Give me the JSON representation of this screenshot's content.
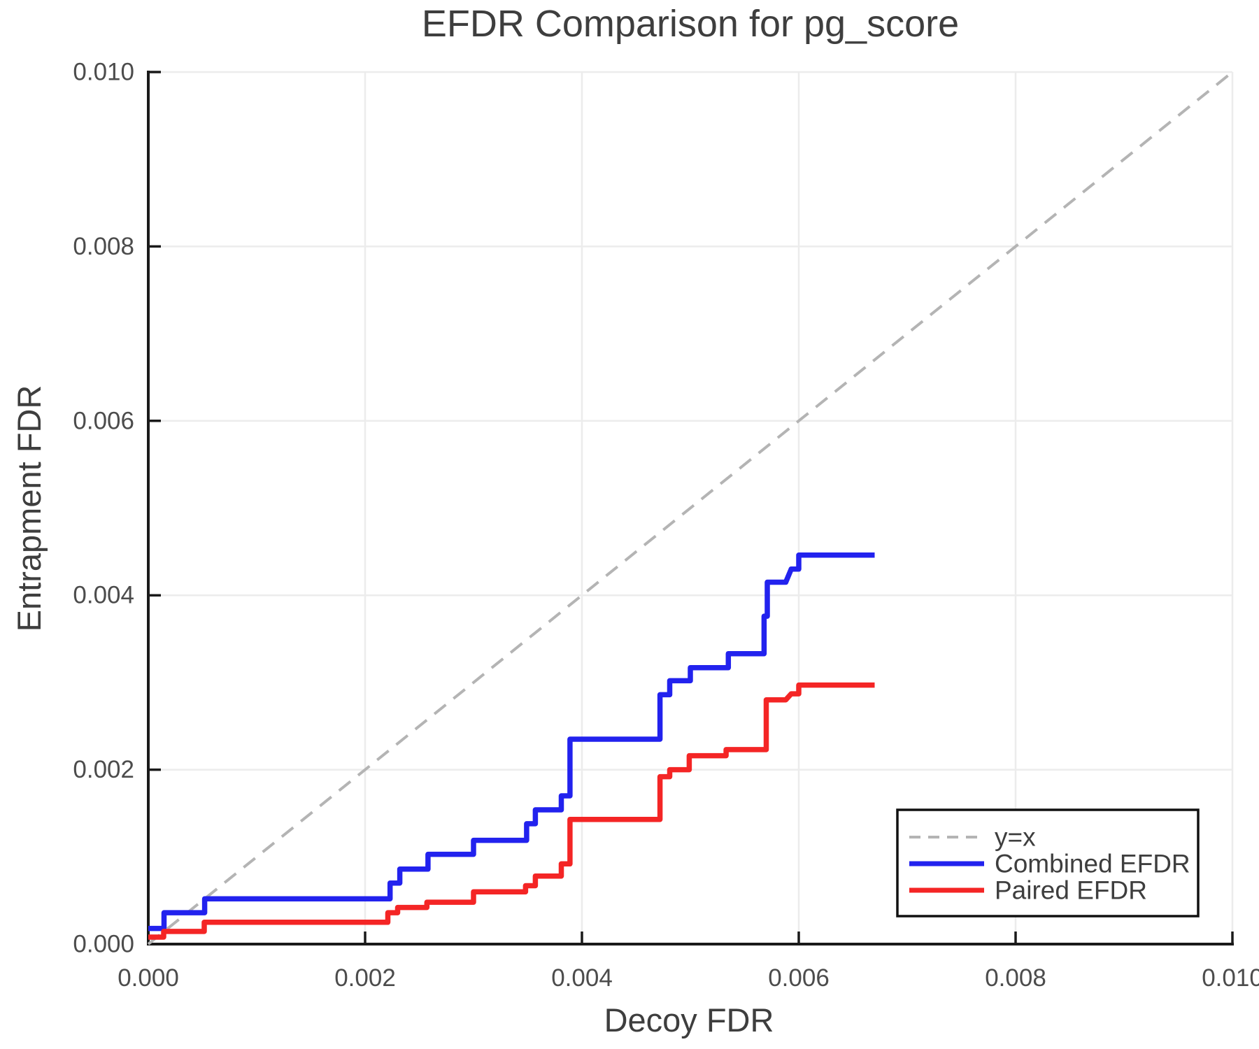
{
  "chart_data": {
    "type": "line",
    "title": "EFDR Comparison for pg_score",
    "xlabel": "Decoy FDR",
    "ylabel": "Entrapment FDR",
    "xlim": [
      0.0,
      0.01
    ],
    "ylim": [
      0.0,
      0.01
    ],
    "grid": true,
    "legend_position": "lower right",
    "x_ticks": [
      0.0,
      0.002,
      0.004,
      0.006,
      0.008,
      0.01
    ],
    "x_tick_labels": [
      "0.000",
      "0.002",
      "0.004",
      "0.006",
      "0.008",
      "0.010"
    ],
    "y_ticks": [
      0.0,
      0.002,
      0.004,
      0.006,
      0.008,
      0.01
    ],
    "y_tick_labels": [
      "0.000",
      "0.002",
      "0.004",
      "0.006",
      "0.008",
      "0.010"
    ],
    "colors": {
      "identity_line": "#b4b4b4",
      "combined": "#2222ee",
      "paired": "#f42525",
      "grid": "#ececec",
      "spine": "#1a1a1a",
      "title_text": "#3e3e3e",
      "tick_text": "#4c4c4c"
    },
    "series": [
      {
        "name": "y=x",
        "style": "dashed",
        "color": "#b4b4b4",
        "points": [
          [
            0.0,
            0.0
          ],
          [
            0.01,
            0.01
          ]
        ]
      },
      {
        "name": "Combined EFDR",
        "style": "solid",
        "color": "#2222ee",
        "points": [
          [
            0.0,
            0.00018
          ],
          [
            0.000145,
            0.00018
          ],
          [
            0.000145,
            0.00036
          ],
          [
            0.00052,
            0.00036
          ],
          [
            0.00052,
            0.00052
          ],
          [
            0.00223,
            0.00052
          ],
          [
            0.00223,
            0.0007
          ],
          [
            0.00232,
            0.0007
          ],
          [
            0.00232,
            0.00086
          ],
          [
            0.00258,
            0.00086
          ],
          [
            0.00258,
            0.00103
          ],
          [
            0.003,
            0.00103
          ],
          [
            0.003,
            0.00119
          ],
          [
            0.00349,
            0.00119
          ],
          [
            0.00349,
            0.00138
          ],
          [
            0.00357,
            0.00138
          ],
          [
            0.00357,
            0.00154
          ],
          [
            0.00381,
            0.00154
          ],
          [
            0.00381,
            0.0017
          ],
          [
            0.00389,
            0.0017
          ],
          [
            0.00389,
            0.00235
          ],
          [
            0.00472,
            0.00235
          ],
          [
            0.00472,
            0.00286
          ],
          [
            0.00481,
            0.00286
          ],
          [
            0.00481,
            0.00302
          ],
          [
            0.005,
            0.00302
          ],
          [
            0.005,
            0.00317
          ],
          [
            0.00535,
            0.00317
          ],
          [
            0.00535,
            0.00333
          ],
          [
            0.00568,
            0.00333
          ],
          [
            0.00568,
            0.00376
          ],
          [
            0.00571,
            0.00376
          ],
          [
            0.00571,
            0.00415
          ],
          [
            0.00588,
            0.00415
          ],
          [
            0.00593,
            0.0043
          ],
          [
            0.006,
            0.0043
          ],
          [
            0.006,
            0.00446
          ],
          [
            0.0067,
            0.00446
          ]
        ]
      },
      {
        "name": "Paired EFDR",
        "style": "solid",
        "color": "#f42525",
        "points": [
          [
            0.0,
            8e-05
          ],
          [
            0.000142,
            8e-05
          ],
          [
            0.000142,
            0.000145
          ],
          [
            0.000516,
            0.000145
          ],
          [
            0.000516,
            0.00025
          ],
          [
            0.00221,
            0.00025
          ],
          [
            0.00221,
            0.00036
          ],
          [
            0.0023,
            0.00036
          ],
          [
            0.0023,
            0.00042
          ],
          [
            0.00257,
            0.00042
          ],
          [
            0.00257,
            0.00048
          ],
          [
            0.003,
            0.00048
          ],
          [
            0.003,
            0.0006
          ],
          [
            0.00348,
            0.0006
          ],
          [
            0.00348,
            0.00067
          ],
          [
            0.00357,
            0.00067
          ],
          [
            0.00357,
            0.00078
          ],
          [
            0.00381,
            0.00078
          ],
          [
            0.00381,
            0.00092
          ],
          [
            0.00389,
            0.00092
          ],
          [
            0.00389,
            0.00143
          ],
          [
            0.00472,
            0.00143
          ],
          [
            0.00472,
            0.00192
          ],
          [
            0.00481,
            0.00192
          ],
          [
            0.00481,
            0.002
          ],
          [
            0.00499,
            0.002
          ],
          [
            0.00499,
            0.00216
          ],
          [
            0.00533,
            0.00216
          ],
          [
            0.00533,
            0.00223
          ],
          [
            0.0057,
            0.00223
          ],
          [
            0.0057,
            0.0028
          ],
          [
            0.00588,
            0.0028
          ],
          [
            0.00593,
            0.00287
          ],
          [
            0.006,
            0.00287
          ],
          [
            0.006,
            0.00297
          ],
          [
            0.0067,
            0.00297
          ]
        ]
      }
    ]
  },
  "legend": {
    "items": [
      {
        "label": "y=x"
      },
      {
        "label": "Combined EFDR"
      },
      {
        "label": "Paired EFDR"
      }
    ]
  }
}
